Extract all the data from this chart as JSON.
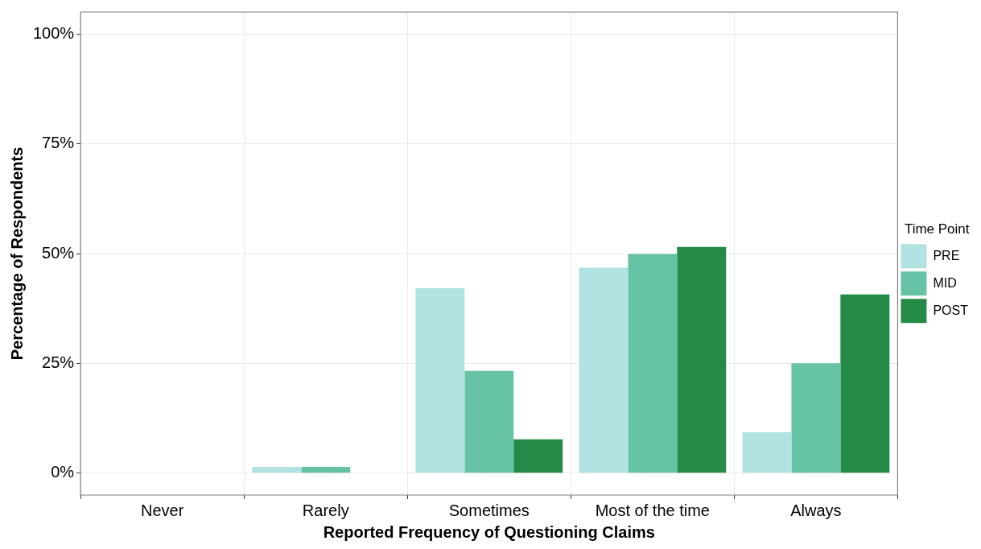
{
  "chart_data": {
    "type": "bar",
    "xlabel": "Reported Frequency of Questioning Claims",
    "ylabel": "Percentage of Respondents",
    "legend_title": "Time Point",
    "categories": [
      "Never",
      "Rarely",
      "Sometimes",
      "Most of the time",
      "Always"
    ],
    "series": [
      {
        "name": "PRE",
        "color": "#b2e2e2",
        "values": [
          0,
          1.4,
          42.1,
          46.8,
          9.3
        ]
      },
      {
        "name": "MID",
        "color": "#66c2a4",
        "values": [
          0,
          1.4,
          23.3,
          49.9,
          25.0
        ]
      },
      {
        "name": "POST",
        "color": "#238b45",
        "values": [
          0,
          0,
          7.7,
          51.5,
          40.7
        ]
      }
    ],
    "ylim": [
      -5,
      105
    ],
    "yticks": [
      {
        "value": 0,
        "label": "0%"
      },
      {
        "value": 25,
        "label": "25%"
      },
      {
        "value": 50,
        "label": "50%"
      },
      {
        "value": 75,
        "label": "75%"
      },
      {
        "value": 100,
        "label": "100%"
      }
    ],
    "grid": true,
    "legend": "right"
  }
}
